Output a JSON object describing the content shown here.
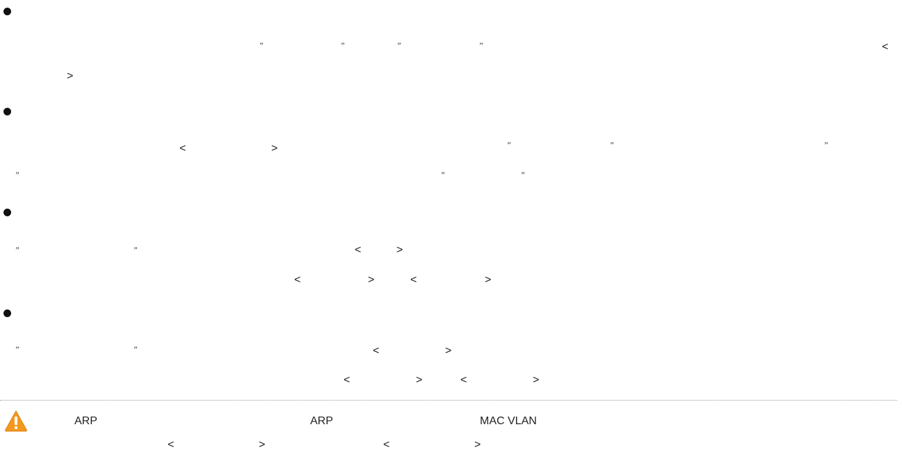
{
  "glyphs": {
    "lt": "<",
    "gt": ">",
    "quote_open": "”",
    "quote_close": "”"
  },
  "note": {
    "arp_1": "ARP",
    "arp_2": "ARP",
    "mac_vlan": "MAC VLAN"
  },
  "colors": {
    "warning_orange": "#f39a1e",
    "warning_mark": "#ffffff"
  },
  "icons": {
    "bullet": "bullet-icon",
    "warning": "warning-icon"
  }
}
